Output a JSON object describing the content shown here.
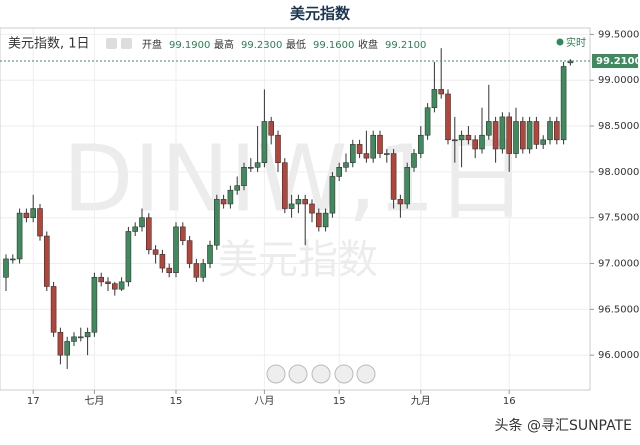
{
  "chart_data": {
    "type": "candlestick",
    "title": "美元指数",
    "subtitle": "美元指数, 1日",
    "stats": [
      {
        "name": "开盘",
        "text": "99.1900"
      },
      {
        "name": "最高",
        "text": "99.2300"
      },
      {
        "name": "最低",
        "text": "99.1600"
      },
      {
        "name": "收盘",
        "text": "99.2100"
      }
    ],
    "live_label": "实时",
    "watermark": "DINIW,1日",
    "watermark2": "美元指数",
    "footer": "头条 @寻汇SUNPATE",
    "last_price": {
      "value": 99.21,
      "label": "99.2100"
    },
    "up_color": "#3e8c5e",
    "down_color": "#b3453a",
    "grid": true,
    "ylim": [
      95.62,
      99.57
    ],
    "yticks": [
      {
        "value": 96,
        "label": "96.0000"
      },
      {
        "value": 96.5,
        "label": "96.5000"
      },
      {
        "value": 97,
        "label": "97.0000"
      },
      {
        "value": 97.5,
        "label": "97.5000"
      },
      {
        "value": 98,
        "label": "98.0000"
      },
      {
        "value": 98.5,
        "label": "98.5000"
      },
      {
        "value": 99,
        "label": "99.0000"
      },
      {
        "value": 99.5,
        "label": "99.5000"
      }
    ],
    "categories": [
      null,
      null,
      null,
      null,
      "17",
      null,
      null,
      null,
      null,
      null,
      null,
      null,
      null,
      "七月",
      null,
      null,
      null,
      null,
      null,
      null,
      null,
      null,
      null,
      null,
      null,
      "15",
      null,
      null,
      null,
      null,
      null,
      null,
      null,
      null,
      null,
      null,
      null,
      null,
      "八月",
      null,
      null,
      null,
      null,
      null,
      null,
      null,
      null,
      null,
      null,
      "15",
      null,
      null,
      null,
      null,
      null,
      null,
      null,
      null,
      null,
      null,
      null,
      "九月",
      null,
      null,
      null,
      null,
      null,
      null,
      null,
      null,
      null,
      null,
      null,
      null,
      "16",
      null,
      null,
      null,
      null,
      null,
      null,
      null,
      null,
      null
    ],
    "open": [
      96.85,
      97.05,
      97.05,
      97.55,
      97.5,
      97.6,
      97.3,
      96.75,
      96.25,
      96.0,
      96.15,
      96.2,
      96.2,
      96.25,
      96.85,
      96.8,
      96.78,
      96.72,
      96.8,
      97.35,
      97.4,
      97.5,
      97.15,
      97.1,
      96.95,
      96.9,
      97.4,
      97.25,
      97.0,
      96.85,
      97.0,
      97.2,
      97.7,
      97.65,
      97.8,
      97.85,
      98.05,
      98.05,
      98.1,
      98.55,
      98.4,
      98.1,
      97.6,
      97.65,
      97.7,
      97.65,
      97.55,
      97.4,
      97.55,
      97.95,
      98.05,
      98.1,
      98.3,
      98.2,
      98.15,
      98.4,
      98.2,
      98.2,
      97.7,
      97.65,
      98.05,
      98.2,
      98.4,
      98.7,
      98.9,
      98.85,
      98.35,
      98.35,
      98.4,
      98.35,
      98.25,
      98.4,
      98.55,
      98.25,
      98.6,
      98.2,
      98.55,
      98.25,
      98.55,
      98.3,
      98.35,
      98.55,
      98.35,
      99.19
    ],
    "high": [
      97.1,
      97.1,
      97.6,
      97.6,
      97.75,
      97.65,
      97.35,
      96.8,
      96.3,
      96.2,
      96.25,
      96.3,
      96.3,
      96.9,
      96.9,
      96.85,
      96.8,
      96.85,
      97.4,
      97.45,
      97.6,
      97.55,
      97.2,
      97.15,
      97.0,
      97.45,
      97.45,
      97.3,
      97.05,
      97.05,
      97.25,
      97.75,
      97.75,
      97.85,
      97.95,
      98.1,
      98.15,
      98.5,
      98.9,
      98.6,
      98.45,
      98.15,
      97.75,
      97.75,
      97.75,
      97.7,
      97.6,
      97.6,
      98.0,
      98.1,
      98.2,
      98.35,
      98.35,
      98.45,
      98.45,
      98.45,
      98.25,
      98.25,
      97.75,
      98.1,
      98.25,
      98.5,
      98.75,
      99.2,
      99.35,
      98.9,
      98.6,
      98.45,
      98.5,
      98.4,
      98.7,
      98.95,
      98.6,
      98.65,
      98.65,
      98.7,
      98.6,
      98.6,
      98.6,
      98.4,
      98.6,
      98.6,
      99.2,
      99.23
    ],
    "low": [
      96.7,
      97.0,
      97.0,
      97.45,
      97.45,
      97.25,
      96.7,
      96.2,
      95.9,
      95.85,
      96.1,
      96.15,
      96.0,
      96.2,
      96.75,
      96.7,
      96.65,
      96.7,
      96.75,
      97.3,
      97.35,
      97.1,
      97.0,
      96.9,
      96.85,
      96.85,
      97.2,
      96.95,
      96.8,
      96.8,
      96.95,
      97.15,
      97.6,
      97.6,
      97.75,
      97.8,
      98.0,
      98.0,
      98.05,
      98.3,
      98.0,
      97.55,
      97.5,
      97.55,
      97.2,
      97.45,
      97.35,
      97.35,
      97.5,
      97.9,
      98.0,
      98.05,
      98.15,
      98.1,
      98.1,
      98.15,
      98.1,
      97.6,
      97.5,
      97.6,
      98.0,
      98.15,
      98.35,
      98.65,
      98.8,
      98.3,
      98.1,
      98.05,
      98.3,
      98.15,
      98.2,
      98.35,
      98.1,
      98.2,
      98.0,
      98.15,
      98.2,
      98.2,
      98.25,
      98.25,
      98.3,
      98.3,
      98.3,
      99.16
    ],
    "close": [
      97.05,
      97.05,
      97.55,
      97.5,
      97.6,
      97.3,
      96.75,
      96.25,
      96.0,
      96.15,
      96.2,
      96.2,
      96.25,
      96.85,
      96.8,
      96.78,
      96.72,
      96.8,
      97.35,
      97.4,
      97.5,
      97.15,
      97.1,
      96.95,
      96.9,
      97.4,
      97.25,
      97.0,
      96.85,
      97.0,
      97.2,
      97.7,
      97.65,
      97.8,
      97.85,
      98.05,
      98.05,
      98.1,
      98.55,
      98.4,
      98.1,
      97.6,
      97.65,
      97.7,
      97.65,
      97.55,
      97.4,
      97.55,
      97.95,
      98.05,
      98.1,
      98.3,
      98.2,
      98.15,
      98.4,
      98.2,
      98.2,
      97.7,
      97.65,
      98.05,
      98.2,
      98.4,
      98.7,
      98.9,
      98.85,
      98.35,
      98.35,
      98.4,
      98.35,
      98.25,
      98.4,
      98.55,
      98.25,
      98.6,
      98.2,
      98.55,
      98.25,
      98.55,
      98.3,
      98.35,
      98.55,
      98.35,
      99.15,
      99.21
    ]
  }
}
